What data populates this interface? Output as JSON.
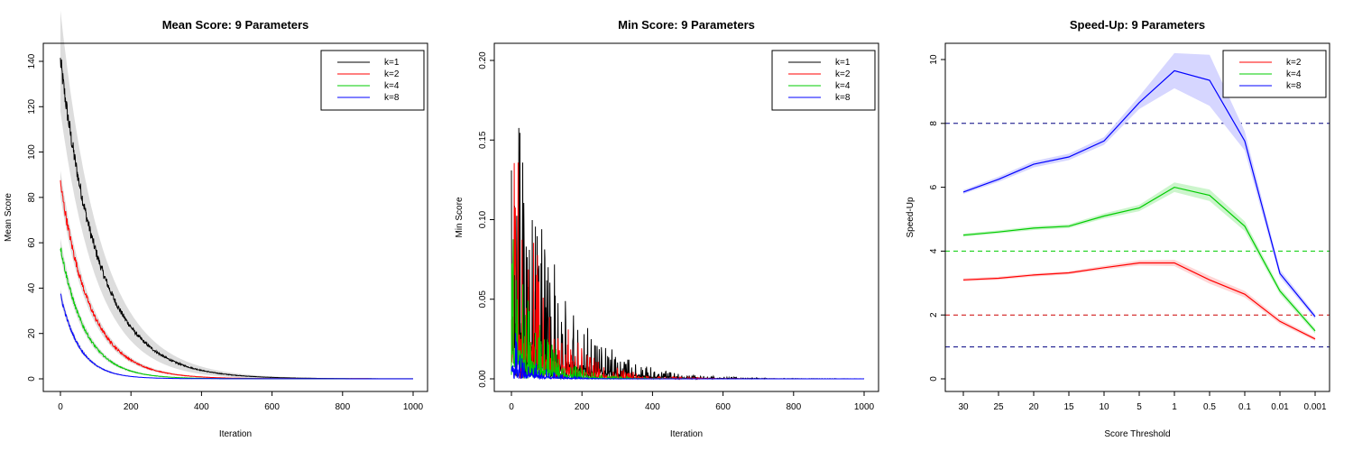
{
  "chart_data": [
    {
      "id": "mean",
      "type": "line",
      "title": "Mean Score: 9 Parameters",
      "xlabel": "Iteration",
      "ylabel": "Mean Score",
      "xlim": [
        0,
        1000
      ],
      "ylim": [
        0,
        140
      ],
      "xticks": [
        "0",
        "200",
        "400",
        "600",
        "800",
        "1000"
      ],
      "yticks": [
        "0",
        "20",
        "40",
        "60",
        "80",
        "100",
        "120",
        "140"
      ],
      "legend_position": "top-right",
      "series": [
        {
          "name": "k=1",
          "color": "#000000",
          "start": 140,
          "decay": 110,
          "noise": 4.5
        },
        {
          "name": "k=2",
          "color": "#ff0000",
          "start": 86,
          "decay": 85,
          "noise": 2.5
        },
        {
          "name": "k=4",
          "color": "#00cc00",
          "start": 58,
          "decay": 70,
          "noise": 1.6
        },
        {
          "name": "k=8",
          "color": "#0000ff",
          "start": 37,
          "decay": 55,
          "noise": 1.0
        }
      ],
      "band_color": "#d9d9d9"
    },
    {
      "id": "min",
      "type": "line",
      "title": "Min Score: 9 Parameters",
      "xlabel": "Iteration",
      "ylabel": "Min Score",
      "xlim": [
        0,
        1000
      ],
      "ylim": [
        0,
        0.2
      ],
      "xticks": [
        "0",
        "200",
        "400",
        "600",
        "800",
        "1000"
      ],
      "yticks": [
        "0.00",
        "0.05",
        "0.10",
        "0.15",
        "0.20"
      ],
      "legend_position": "top-right",
      "series": [
        {
          "name": "k=1",
          "color": "#000000",
          "peak": 0.2,
          "decay": 120
        },
        {
          "name": "k=2",
          "color": "#ff0000",
          "peak": 0.17,
          "decay": 95
        },
        {
          "name": "k=4",
          "color": "#00cc00",
          "peak": 0.1,
          "decay": 75
        },
        {
          "name": "k=8",
          "color": "#0000ff",
          "peak": 0.04,
          "decay": 55
        }
      ]
    },
    {
      "id": "speedup",
      "type": "line",
      "title": "Speed-Up: 9 Parameters",
      "xlabel": "Score Threshold",
      "ylabel": "Speed-Up",
      "categories": [
        "30",
        "25",
        "20",
        "15",
        "10",
        "5",
        "1",
        "0.5",
        "0.1",
        "0.01",
        "0.001"
      ],
      "ylim": [
        0,
        10
      ],
      "yticks": [
        "0",
        "2",
        "4",
        "6",
        "8",
        "10"
      ],
      "legend_position": "top-right",
      "hlines": [
        {
          "y": 8,
          "color": "#000080"
        },
        {
          "y": 4,
          "color": "#00cc00"
        },
        {
          "y": 2,
          "color": "#cc0000"
        },
        {
          "y": 1,
          "color": "#000080"
        }
      ],
      "series": [
        {
          "name": "k=2",
          "color": "#ff0000",
          "band": "#ffd6d6",
          "values": [
            3.1,
            3.15,
            3.25,
            3.32,
            3.48,
            3.63,
            3.63,
            3.1,
            2.65,
            1.8,
            1.25
          ],
          "spread": [
            0.05,
            0.05,
            0.05,
            0.05,
            0.06,
            0.08,
            0.1,
            0.12,
            0.1,
            0.08,
            0.06
          ]
        },
        {
          "name": "k=4",
          "color": "#00cc00",
          "band": "#ccf5cc",
          "values": [
            4.5,
            4.6,
            4.72,
            4.78,
            5.1,
            5.35,
            6.0,
            5.75,
            4.78,
            2.75,
            1.5
          ],
          "spread": [
            0.05,
            0.05,
            0.06,
            0.06,
            0.08,
            0.1,
            0.15,
            0.18,
            0.15,
            0.1,
            0.08
          ]
        },
        {
          "name": "k=8",
          "color": "#0000ff",
          "band": "#d6d6ff",
          "values": [
            5.85,
            6.25,
            6.72,
            6.95,
            7.45,
            8.65,
            9.65,
            9.35,
            7.45,
            3.3,
            1.95
          ],
          "spread": [
            0.06,
            0.08,
            0.1,
            0.1,
            0.12,
            0.2,
            0.55,
            0.8,
            0.3,
            0.12,
            0.08
          ]
        }
      ]
    }
  ]
}
